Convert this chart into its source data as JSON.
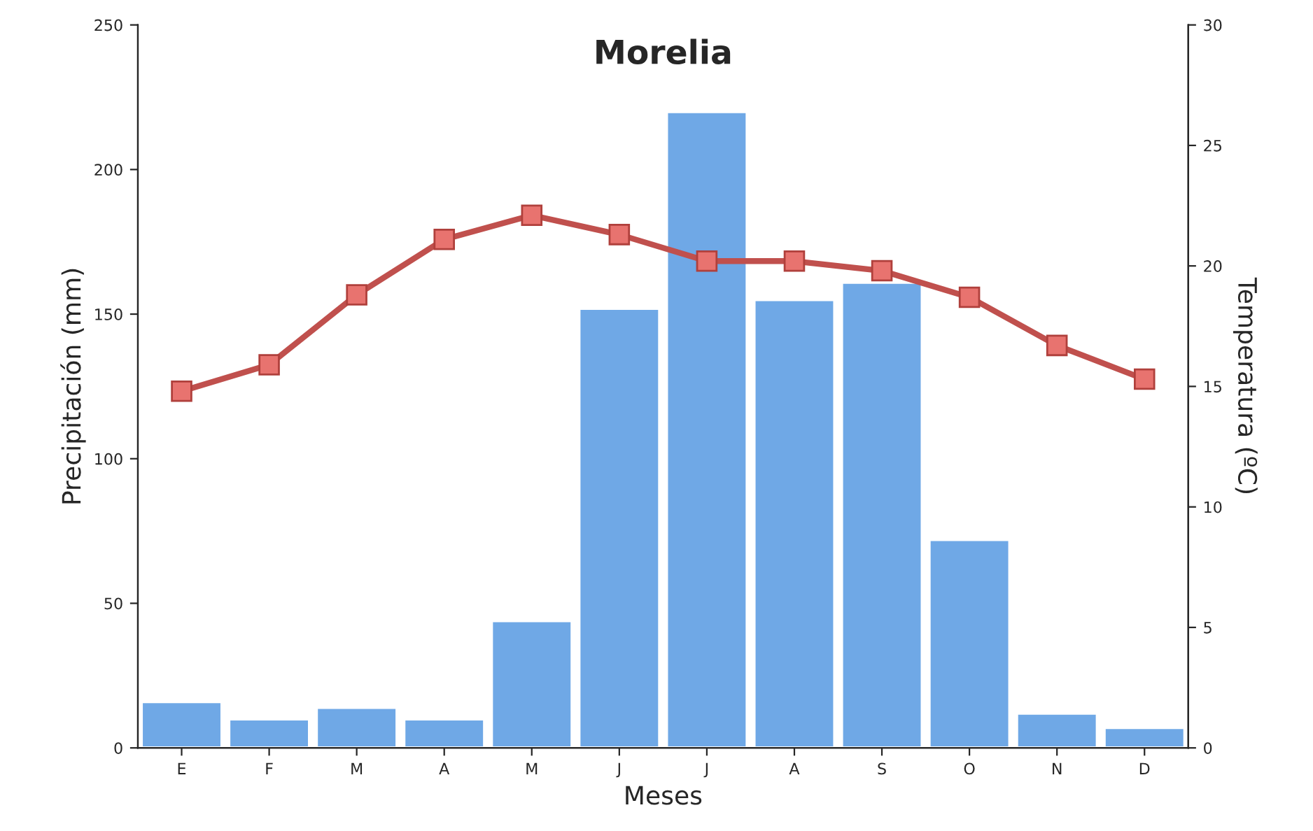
{
  "chart_data": {
    "type": "bar",
    "title": "Morelia",
    "xlabel": "Meses",
    "ylabel": "Precipitación (mm)",
    "y2label": "Temperatura (ºC)",
    "categories": [
      "E",
      "F",
      "M",
      "A",
      "M",
      "J",
      "J",
      "A",
      "S",
      "O",
      "N",
      "D"
    ],
    "series": [
      {
        "color": "#6fa8e6",
        "values": [
          16,
          10,
          14,
          10,
          44,
          152,
          220,
          155,
          161,
          72,
          12,
          7
        ]
      },
      {
        "type": "line",
        "axis": "y2",
        "color": "#c0504d",
        "marker": "square",
        "values": [
          14.8,
          15.9,
          18.8,
          21.1,
          22.1,
          21.3,
          20.2,
          20.2,
          19.8,
          18.7,
          16.7,
          15.3
        ]
      }
    ],
    "ylim": [
      0,
      250
    ],
    "yticks": [
      0,
      50,
      100,
      150,
      200,
      250
    ],
    "y2lim": [
      0,
      30
    ],
    "y2ticks": [
      0,
      5,
      10,
      15,
      20,
      25,
      30
    ],
    "grid": false,
    "legend": false
  }
}
